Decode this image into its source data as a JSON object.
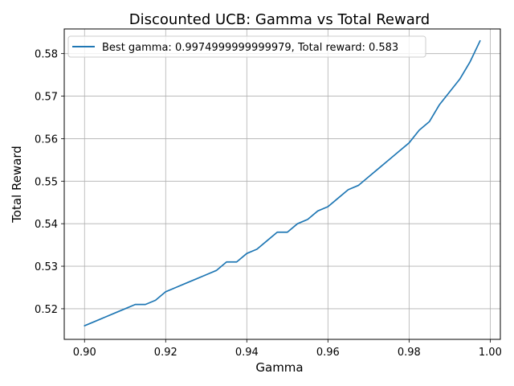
{
  "chart_data": {
    "type": "line",
    "title": "Discounted UCB: Gamma vs Total Reward",
    "xlabel": "Gamma",
    "ylabel": "Total Reward",
    "xlim": [
      0.895,
      1.0025
    ],
    "ylim": [
      0.5128,
      0.5858
    ],
    "x_ticks": [
      0.9,
      0.92,
      0.94,
      0.96,
      0.98,
      1.0
    ],
    "x_tick_labels": [
      "0.90",
      "0.92",
      "0.94",
      "0.96",
      "0.98",
      "1.00"
    ],
    "y_ticks": [
      0.52,
      0.53,
      0.54,
      0.55,
      0.56,
      0.57,
      0.58
    ],
    "y_tick_labels": [
      "0.52",
      "0.53",
      "0.54",
      "0.55",
      "0.56",
      "0.57",
      "0.58"
    ],
    "grid": true,
    "legend_position": "top-left",
    "series": [
      {
        "name": "Best gamma: 0.9974999999999979, Total reward: 0.583",
        "color": "#1f77b4",
        "x": [
          0.9,
          0.9025,
          0.905,
          0.9075,
          0.91,
          0.9125,
          0.915,
          0.9175,
          0.92,
          0.9225,
          0.925,
          0.9275,
          0.93,
          0.9325,
          0.935,
          0.9375,
          0.94,
          0.9425,
          0.945,
          0.9475,
          0.95,
          0.9525,
          0.955,
          0.9575,
          0.96,
          0.9625,
          0.965,
          0.9675,
          0.97,
          0.9725,
          0.975,
          0.9775,
          0.98,
          0.9825,
          0.985,
          0.9875,
          0.99,
          0.9925,
          0.995,
          0.9975
        ],
        "y": [
          0.516,
          0.517,
          0.518,
          0.519,
          0.52,
          0.521,
          0.521,
          0.522,
          0.524,
          0.525,
          0.526,
          0.527,
          0.528,
          0.529,
          0.531,
          0.531,
          0.533,
          0.534,
          0.536,
          0.538,
          0.538,
          0.54,
          0.541,
          0.543,
          0.544,
          0.546,
          0.548,
          0.549,
          0.551,
          0.553,
          0.555,
          0.557,
          0.559,
          0.562,
          0.564,
          0.568,
          0.571,
          0.574,
          0.578,
          0.583
        ]
      }
    ]
  }
}
